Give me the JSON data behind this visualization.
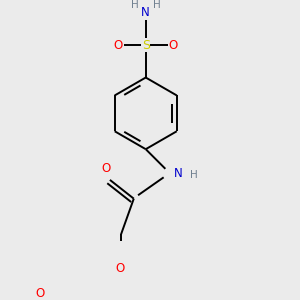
{
  "bg_color": "#ebebeb",
  "bond_color": "#000000",
  "bond_width": 1.4,
  "dbo": 0.05,
  "atom_colors": {
    "O": "#ff0000",
    "N": "#0000cd",
    "S": "#cccc00",
    "H": "#708090",
    "C": "#000000"
  },
  "fs": 8.5
}
